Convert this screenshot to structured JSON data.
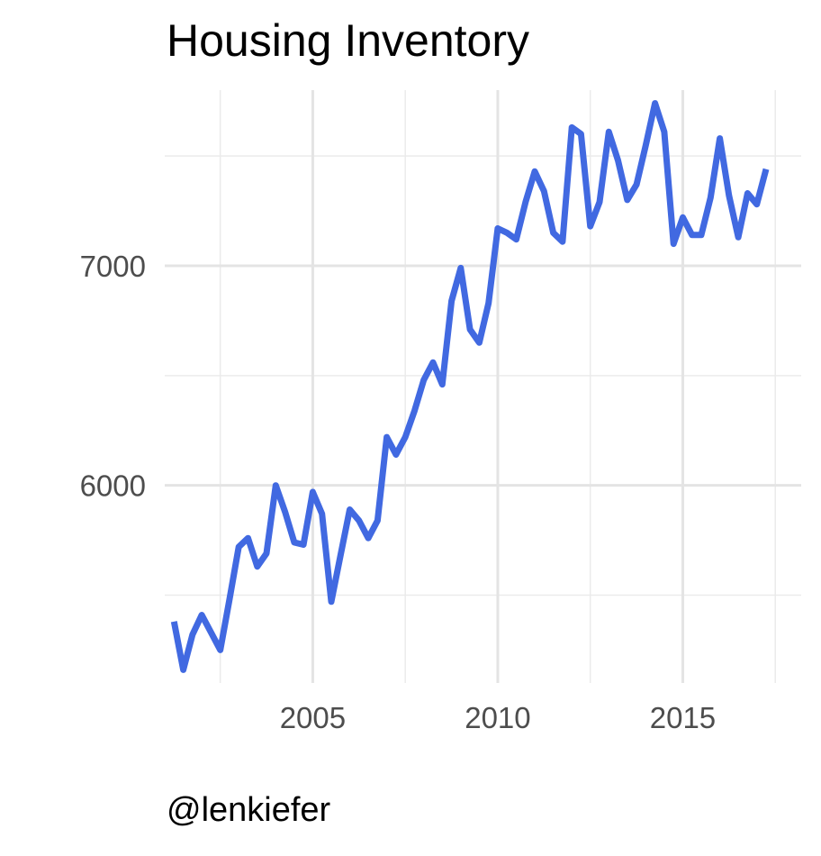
{
  "chart_data": {
    "type": "line",
    "title": "Housing Inventory",
    "xlabel": "",
    "ylabel": "",
    "caption": "@lenkiefer",
    "xlim": [
      2001.0,
      2018.2
    ],
    "ylim": [
      5100,
      7800
    ],
    "x_ticks": [
      2005,
      2010,
      2015
    ],
    "x_tick_labels": [
      "2005",
      "2010",
      "2015"
    ],
    "x_minor_ticks": [
      2002.5,
      2007.5,
      2012.5,
      2017.5
    ],
    "y_ticks": [
      6000,
      7000
    ],
    "y_tick_labels": [
      "6000",
      "7000"
    ],
    "y_minor_ticks": [
      5500,
      6500,
      7500
    ],
    "grid": true,
    "line_color": "#4169e1",
    "series": [
      {
        "x": [
          2001.25,
          2001.5,
          2001.75,
          2002.0,
          2002.25,
          2002.5,
          2002.75,
          2003.0,
          2003.25,
          2003.5,
          2003.75,
          2004.0,
          2004.25,
          2004.5,
          2004.75,
          2005.0,
          2005.25,
          2005.5,
          2005.75,
          2006.0,
          2006.25,
          2006.5,
          2006.75,
          2007.0,
          2007.25,
          2007.5,
          2007.75,
          2008.0,
          2008.25,
          2008.5,
          2008.75,
          2009.0,
          2009.25,
          2009.5,
          2009.75,
          2010.0,
          2010.25,
          2010.5,
          2010.75,
          2011.0,
          2011.25,
          2011.5,
          2011.75,
          2012.0,
          2012.25,
          2012.5,
          2012.75,
          2013.0,
          2013.25,
          2013.5,
          2013.75,
          2014.0,
          2014.25,
          2014.5,
          2014.75,
          2015.0,
          2015.25,
          2015.5,
          2015.75,
          2016.0,
          2016.25,
          2016.5,
          2016.75,
          2017.0,
          2017.25
        ],
        "values": [
          5380,
          5160,
          5320,
          5410,
          5330,
          5250,
          5480,
          5720,
          5760,
          5630,
          5690,
          6000,
          5880,
          5740,
          5730,
          5970,
          5870,
          5470,
          5680,
          5890,
          5840,
          5760,
          5840,
          6220,
          6140,
          6220,
          6340,
          6480,
          6560,
          6460,
          6840,
          6990,
          6710,
          6650,
          6830,
          7170,
          7150,
          7120,
          7290,
          7430,
          7340,
          7150,
          7110,
          7630,
          7600,
          7180,
          7290,
          7610,
          7480,
          7300,
          7370,
          7550,
          7740,
          7610,
          7100,
          7220,
          7140,
          7140,
          7310,
          7580,
          7320,
          7130,
          7330,
          7280,
          7440
        ]
      }
    ]
  }
}
